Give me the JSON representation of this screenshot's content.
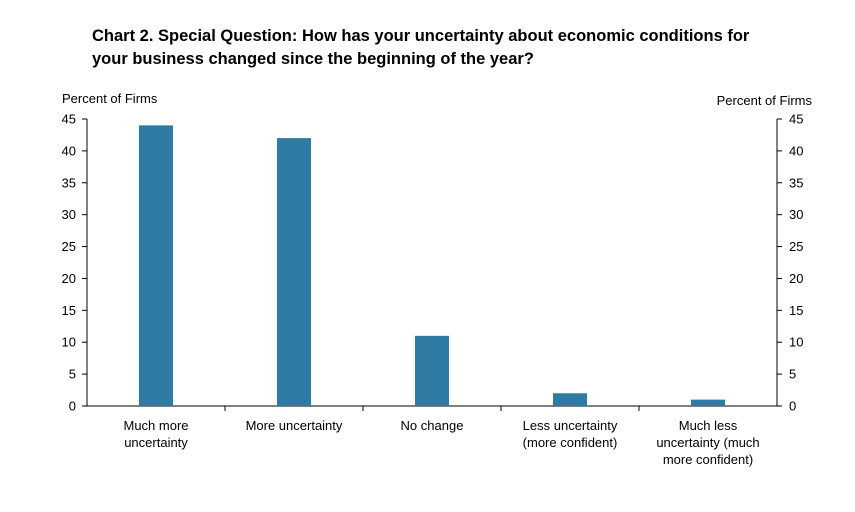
{
  "chart_data": {
    "type": "bar",
    "title_lines": [
      "Chart 2. Special Question: How has your uncertainty about economic conditions for",
      "your business changed since the beginning of the year?"
    ],
    "ylabel_left": "Percent of Firms",
    "ylabel_right": "Percent of Firms",
    "ylim": [
      0,
      45
    ],
    "yticks": [
      0,
      5,
      10,
      15,
      20,
      25,
      30,
      35,
      40,
      45
    ],
    "categories": [
      [
        "Much more",
        "uncertainty"
      ],
      [
        "More uncertainty"
      ],
      [
        "No change"
      ],
      [
        "Less uncertainty",
        "(more confident)"
      ],
      [
        "Much less",
        "uncertainty (much",
        "more confident)"
      ]
    ],
    "values": [
      44,
      42,
      11,
      2,
      1
    ],
    "bar_color": "#2E7BA4",
    "grid": false
  }
}
